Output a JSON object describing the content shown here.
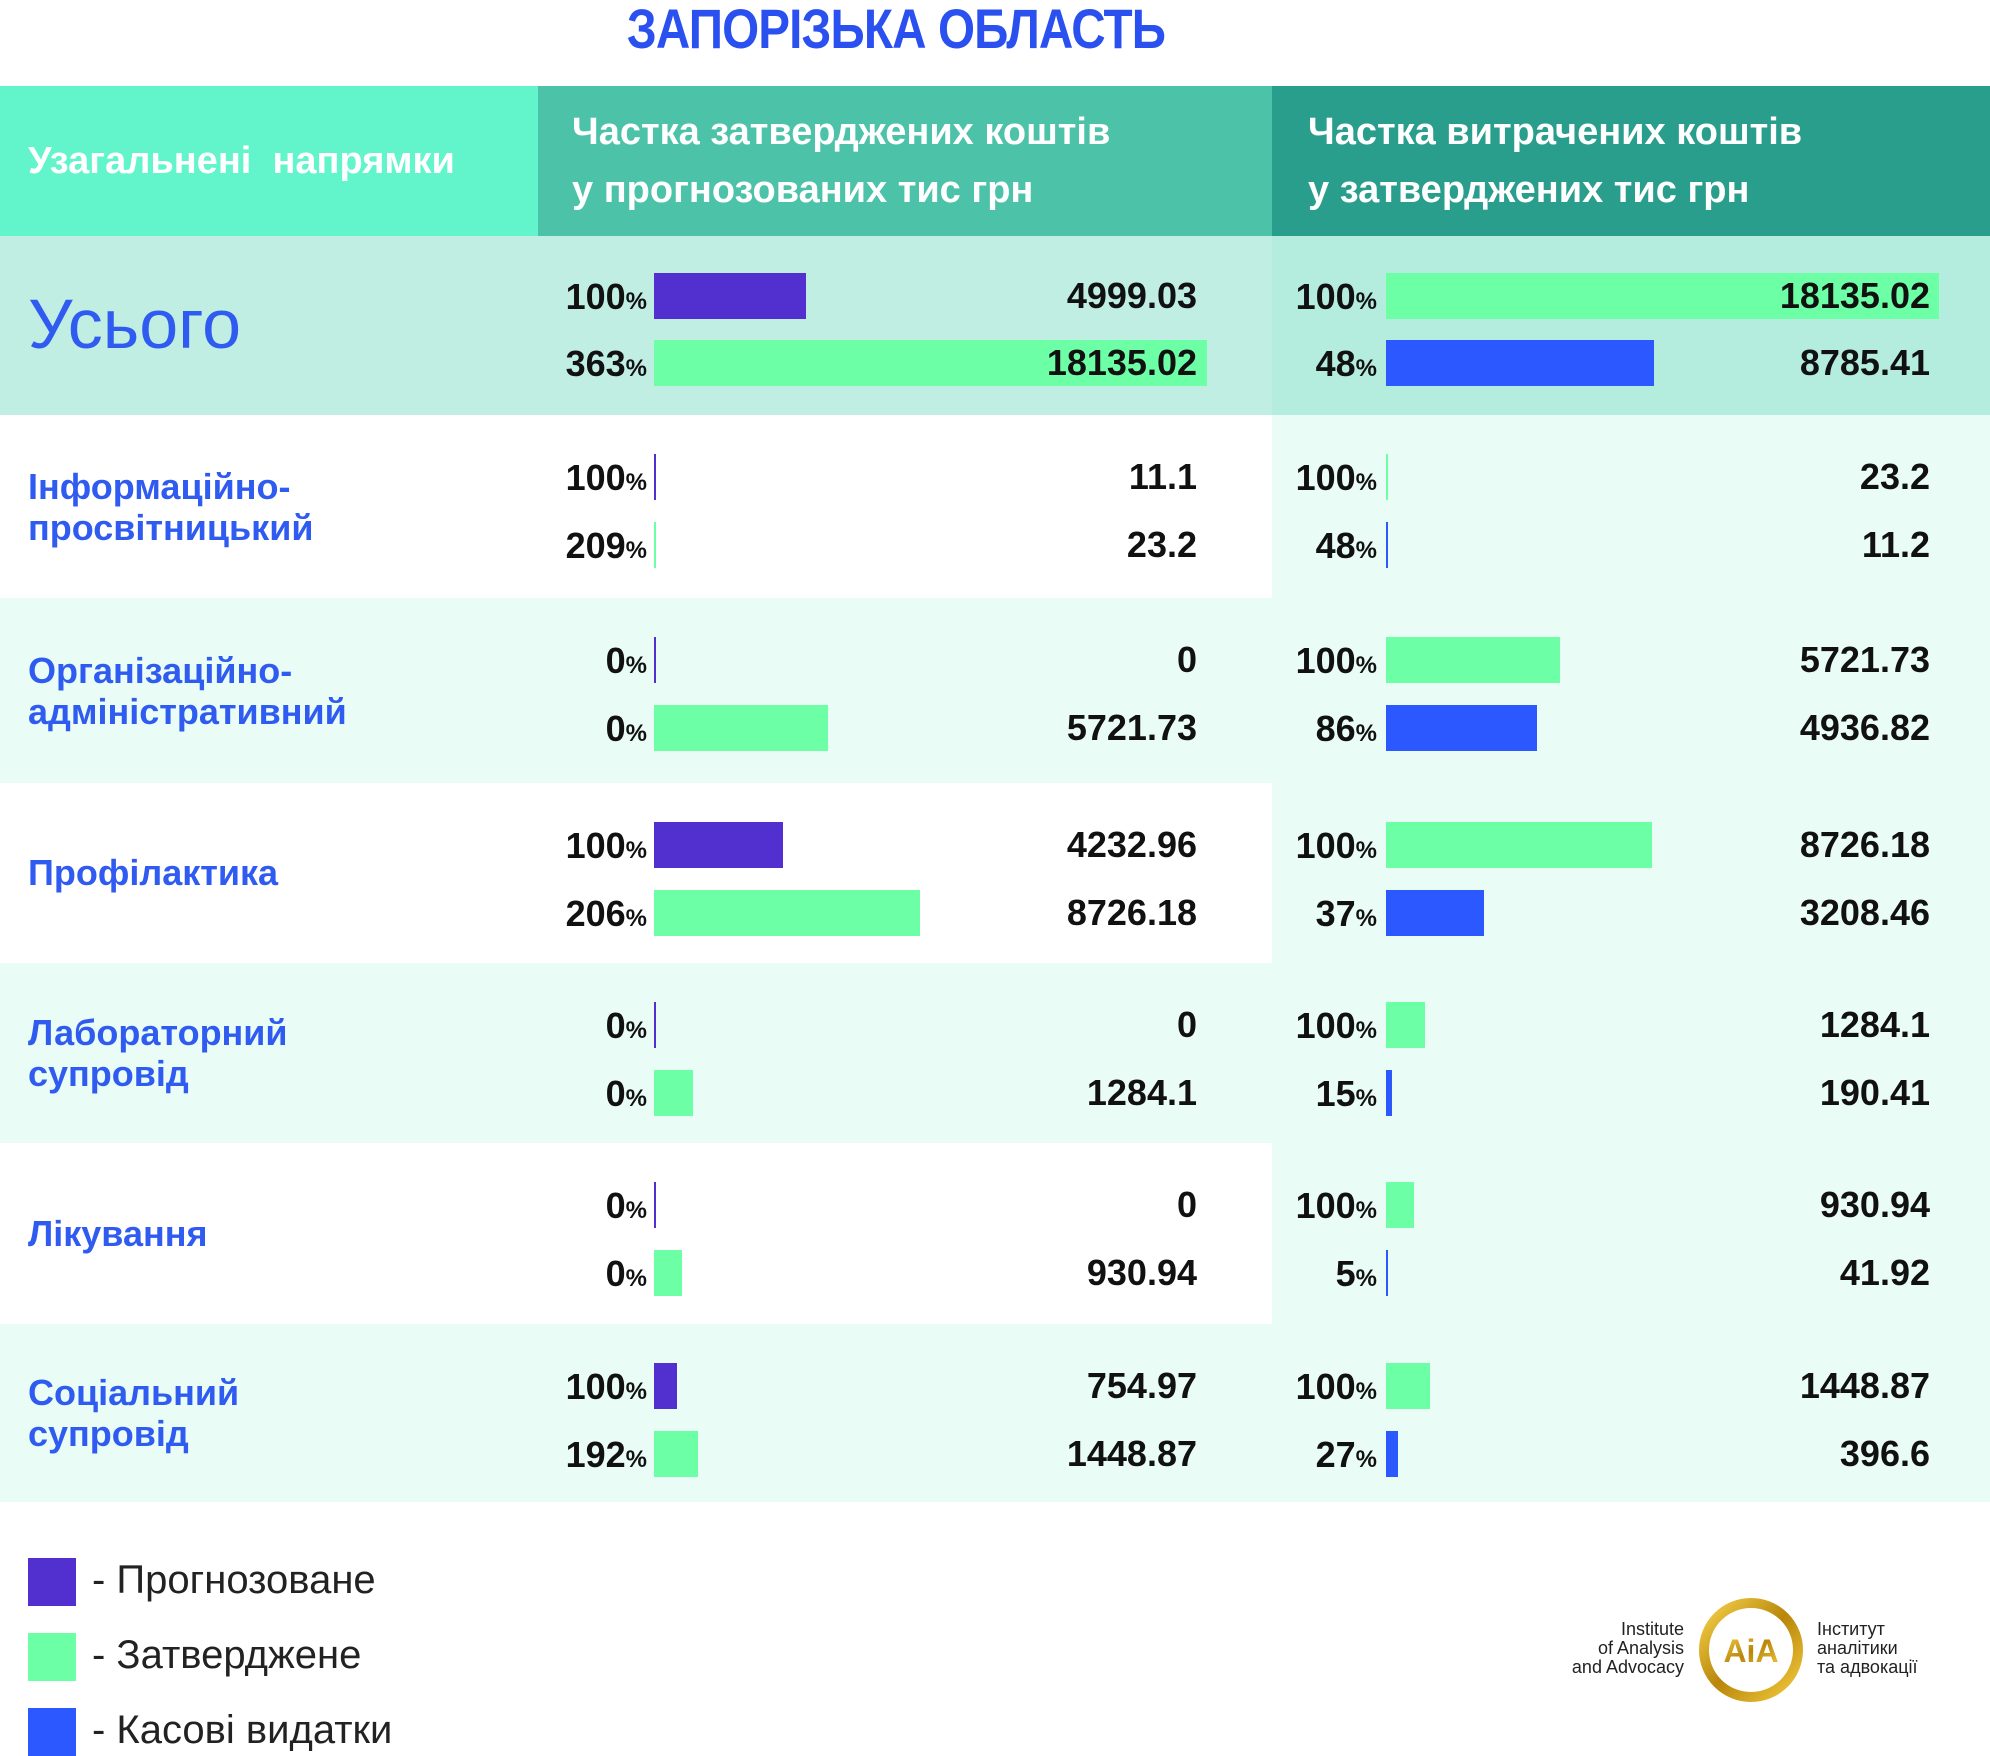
{
  "title": "ЗАПОРІЗЬКА ОБЛАСТЬ",
  "colors": {
    "forecast": "#5230d0",
    "approved": "#6dffa6",
    "cash": "#2b59ff",
    "label": "#2f5bf0",
    "header1": "#62f5cb",
    "header2": "#4cc3a8",
    "header3": "#2a9e8c"
  },
  "chart_data": {
    "type": "table",
    "headers": [
      "Узагальнені  напрямки",
      "Частка затверджених коштів у прогнозованих тис грн",
      "Частка витрачених коштів у затверджених тис грн"
    ],
    "header_lines": {
      "col2": [
        "Частка затверджених коштів",
        "у прогнозованих тис грн"
      ],
      "col3": [
        "Частка витрачених коштів",
        "у затверджених тис грн"
      ]
    },
    "rows": [
      {
        "label": "Усього",
        "approved_share": [
          {
            "pct": "100",
            "value": "4999.03",
            "kind": "forecast",
            "amount": 4999.03
          },
          {
            "pct": "363",
            "value": "18135.02",
            "kind": "approved",
            "amount": 18135.02
          }
        ],
        "spent_share": [
          {
            "pct": "100",
            "value": "18135.02",
            "kind": "approved",
            "amount": 18135.02
          },
          {
            "pct": "48",
            "value": "8785.41",
            "kind": "cash",
            "amount": 8785.41
          }
        ]
      },
      {
        "label": "Інформаційно-\nпросвітницький",
        "approved_share": [
          {
            "pct": "100",
            "value": "11.1",
            "kind": "forecast",
            "amount": 11.1
          },
          {
            "pct": "209",
            "value": "23.2",
            "kind": "approved",
            "amount": 23.2
          }
        ],
        "spent_share": [
          {
            "pct": "100",
            "value": "23.2",
            "kind": "approved",
            "amount": 23.2
          },
          {
            "pct": "48",
            "value": "11.2",
            "kind": "cash",
            "amount": 11.2
          }
        ]
      },
      {
        "label": "Організаційно-\nадміністративний",
        "approved_share": [
          {
            "pct": "0",
            "value": "0",
            "kind": "forecast",
            "amount": 0
          },
          {
            "pct": "0",
            "value": "5721.73",
            "kind": "approved",
            "amount": 5721.73
          }
        ],
        "spent_share": [
          {
            "pct": "100",
            "value": "5721.73",
            "kind": "approved",
            "amount": 5721.73
          },
          {
            "pct": "86",
            "value": "4936.82",
            "kind": "cash",
            "amount": 4936.82
          }
        ]
      },
      {
        "label": "Профілактика",
        "approved_share": [
          {
            "pct": "100",
            "value": "4232.96",
            "kind": "forecast",
            "amount": 4232.96
          },
          {
            "pct": "206",
            "value": "8726.18",
            "kind": "approved",
            "amount": 8726.18
          }
        ],
        "spent_share": [
          {
            "pct": "100",
            "value": "8726.18",
            "kind": "approved",
            "amount": 8726.18
          },
          {
            "pct": "37",
            "value": "3208.46",
            "kind": "cash",
            "amount": 3208.46
          }
        ]
      },
      {
        "label": "Лабораторний\nсупровід",
        "approved_share": [
          {
            "pct": "0",
            "value": "0",
            "kind": "forecast",
            "amount": 0
          },
          {
            "pct": "0",
            "value": "1284.1",
            "kind": "approved",
            "amount": 1284.1
          }
        ],
        "spent_share": [
          {
            "pct": "100",
            "value": "1284.1",
            "kind": "approved",
            "amount": 1284.1
          },
          {
            "pct": "15",
            "value": "190.41",
            "kind": "cash",
            "amount": 190.41
          }
        ]
      },
      {
        "label": "Лікування",
        "approved_share": [
          {
            "pct": "0",
            "value": "0",
            "kind": "forecast",
            "amount": 0
          },
          {
            "pct": "0",
            "value": "930.94",
            "kind": "approved",
            "amount": 930.94
          }
        ],
        "spent_share": [
          {
            "pct": "100",
            "value": "930.94",
            "kind": "approved",
            "amount": 930.94
          },
          {
            "pct": "5",
            "value": "41.92",
            "kind": "cash",
            "amount": 41.92
          }
        ]
      },
      {
        "label": "Соціальний\nсупровід",
        "approved_share": [
          {
            "pct": "100",
            "value": "754.97",
            "kind": "forecast",
            "amount": 754.97
          },
          {
            "pct": "192",
            "value": "1448.87",
            "kind": "approved",
            "amount": 1448.87
          }
        ],
        "spent_share": [
          {
            "pct": "100",
            "value": "1448.87",
            "kind": "approved",
            "amount": 1448.87
          },
          {
            "pct": "27",
            "value": "396.6",
            "kind": "cash",
            "amount": 396.6
          }
        ]
      }
    ],
    "percent_sign": "%",
    "max_amount": 18135.02
  },
  "legend": [
    {
      "label": "- Прогнозоване",
      "kind": "forecast"
    },
    {
      "label": "- Затверджене",
      "kind": "approved"
    },
    {
      "label": "- Касові видатки",
      "kind": "cash"
    }
  ],
  "logo": {
    "en": [
      "Institute",
      "of Analysis",
      "and Advocacy"
    ],
    "uk": [
      "Інститут",
      "аналітики",
      "та адвокації"
    ],
    "mark": "AIA"
  }
}
